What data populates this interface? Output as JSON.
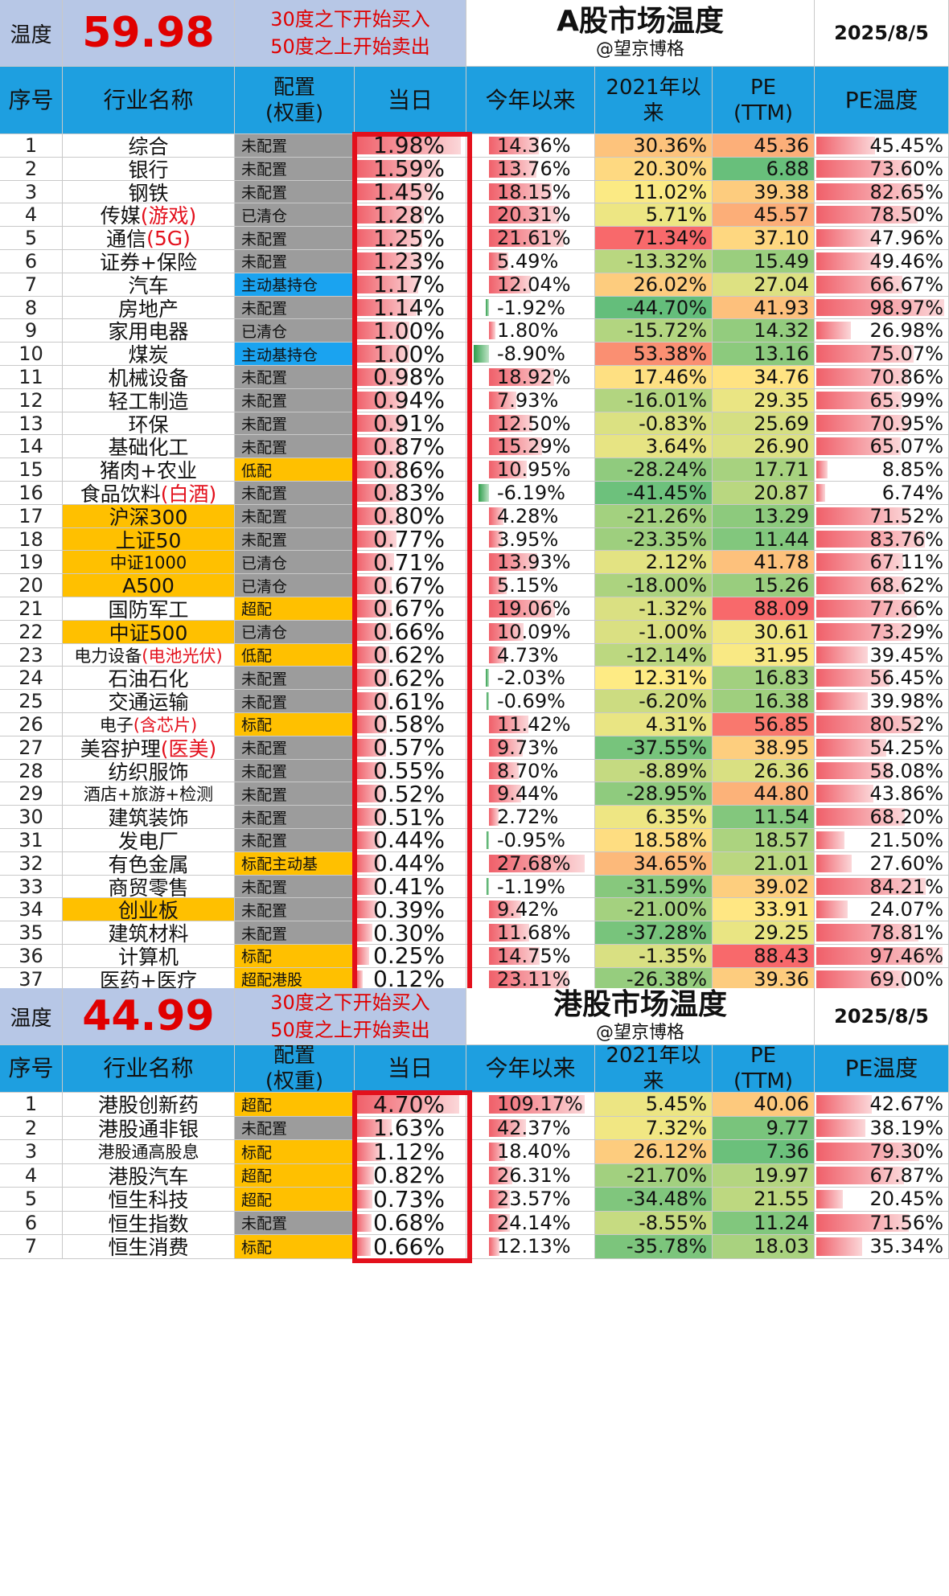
{
  "a_share": {
    "temp_label": "温度",
    "temp_value": "59.98",
    "rule_line1": "30度之下开始买入",
    "rule_line2": "50度之上开始卖出",
    "title": "A股市场温度",
    "author": "@望京博格",
    "date": "2025/8/5",
    "headers": {
      "idx": "序号",
      "name": "行业名称",
      "alloc": "配置\n(权重)",
      "day": "当日",
      "ytd": "今年以来",
      "since2021": "2021年以\n来",
      "pe": "PE\n(TTM)",
      "pet": "PE温度"
    },
    "rows": [
      {
        "idx": "1",
        "name": "综合",
        "alloc": "未配置",
        "day": "1.98%",
        "ytd": "14.36%",
        "s21": "30.36%",
        "pe": "45.36",
        "pet": "45.45%"
      },
      {
        "idx": "2",
        "name": "银行",
        "alloc": "未配置",
        "day": "1.59%",
        "ytd": "13.76%",
        "s21": "20.30%",
        "pe": "6.88",
        "pet": "73.60%"
      },
      {
        "idx": "3",
        "name": "钢铁",
        "alloc": "未配置",
        "day": "1.45%",
        "ytd": "18.15%",
        "s21": "11.02%",
        "pe": "39.38",
        "pet": "82.65%"
      },
      {
        "idx": "4",
        "name": "传媒",
        "name_red": "(游戏)",
        "alloc": "已清仓",
        "day": "1.28%",
        "ytd": "20.31%",
        "s21": "5.71%",
        "pe": "45.57",
        "pet": "78.50%"
      },
      {
        "idx": "5",
        "name": "通信",
        "name_red": "(5G)",
        "alloc": "未配置",
        "day": "1.25%",
        "ytd": "21.61%",
        "s21": "71.34%",
        "pe": "37.10",
        "pet": "47.96%"
      },
      {
        "idx": "6",
        "name": "证券+保险",
        "alloc": "未配置",
        "day": "1.23%",
        "ytd": "5.49%",
        "s21": "-13.32%",
        "pe": "15.49",
        "pet": "49.46%"
      },
      {
        "idx": "7",
        "name": "汽车",
        "alloc": "主动基持仓",
        "day": "1.17%",
        "ytd": "12.04%",
        "s21": "26.02%",
        "pe": "27.04",
        "pet": "66.67%"
      },
      {
        "idx": "8",
        "name": "房地产",
        "alloc": "未配置",
        "day": "1.14%",
        "ytd": "-1.92%",
        "s21": "-44.70%",
        "pe": "41.93",
        "pet": "98.97%"
      },
      {
        "idx": "9",
        "name": "家用电器",
        "alloc": "已清仓",
        "day": "1.00%",
        "ytd": "1.80%",
        "s21": "-15.72%",
        "pe": "14.32",
        "pet": "26.98%"
      },
      {
        "idx": "10",
        "name": "煤炭",
        "alloc": "主动基持仓",
        "day": "1.00%",
        "ytd": "-8.90%",
        "s21": "53.38%",
        "pe": "13.16",
        "pet": "75.07%"
      },
      {
        "idx": "11",
        "name": "机械设备",
        "alloc": "未配置",
        "day": "0.98%",
        "ytd": "18.92%",
        "s21": "17.46%",
        "pe": "34.76",
        "pet": "70.86%"
      },
      {
        "idx": "12",
        "name": "轻工制造",
        "alloc": "未配置",
        "day": "0.94%",
        "ytd": "7.93%",
        "s21": "-16.01%",
        "pe": "29.35",
        "pet": "65.99%"
      },
      {
        "idx": "13",
        "name": "环保",
        "alloc": "未配置",
        "day": "0.91%",
        "ytd": "12.50%",
        "s21": "-0.83%",
        "pe": "25.69",
        "pet": "70.95%"
      },
      {
        "idx": "14",
        "name": "基础化工",
        "alloc": "未配置",
        "day": "0.87%",
        "ytd": "15.29%",
        "s21": "3.64%",
        "pe": "26.90",
        "pet": "65.07%"
      },
      {
        "idx": "15",
        "name": "猪肉+农业",
        "alloc": "低配",
        "day": "0.86%",
        "ytd": "10.95%",
        "s21": "-28.24%",
        "pe": "17.71",
        "pet": "8.85%"
      },
      {
        "idx": "16",
        "name": "食品饮料",
        "name_red": "(白酒)",
        "alloc": "未配置",
        "day": "0.83%",
        "ytd": "-6.19%",
        "s21": "-41.45%",
        "pe": "20.87",
        "pet": "6.74%"
      },
      {
        "idx": "17",
        "name": "沪深300",
        "alloc": "未配置",
        "day": "0.80%",
        "ytd": "4.28%",
        "s21": "-21.26%",
        "pe": "13.29",
        "pet": "71.52%"
      },
      {
        "idx": "18",
        "name": "上证50",
        "alloc": "未配置",
        "day": "0.77%",
        "ytd": "3.95%",
        "s21": "-23.35%",
        "pe": "11.44",
        "pet": "83.76%"
      },
      {
        "idx": "19",
        "name": "中证1000",
        "alloc": "已清仓",
        "day": "0.71%",
        "ytd": "13.93%",
        "s21": "2.12%",
        "pe": "41.78",
        "pet": "67.11%"
      },
      {
        "idx": "20",
        "name": "A500",
        "alloc": "已清仓",
        "day": "0.67%",
        "ytd": "5.15%",
        "s21": "-18.00%",
        "pe": "15.26",
        "pet": "68.62%"
      },
      {
        "idx": "21",
        "name": "国防军工",
        "alloc": "超配",
        "day": "0.67%",
        "ytd": "19.06%",
        "s21": "-1.32%",
        "pe": "88.09",
        "pet": "77.66%"
      },
      {
        "idx": "22",
        "name": "中证500",
        "alloc": "已清仓",
        "day": "0.66%",
        "ytd": "10.09%",
        "s21": "-1.00%",
        "pe": "30.61",
        "pet": "73.29%"
      },
      {
        "idx": "23",
        "name": "电力设备",
        "name_red": "(电池光伏)",
        "alloc": "低配",
        "day": "0.62%",
        "ytd": "4.73%",
        "s21": "-12.14%",
        "pe": "31.95",
        "pet": "39.45%"
      },
      {
        "idx": "24",
        "name": "石油石化",
        "alloc": "未配置",
        "day": "0.62%",
        "ytd": "-2.03%",
        "s21": "12.31%",
        "pe": "16.83",
        "pet": "56.45%"
      },
      {
        "idx": "25",
        "name": "交通运输",
        "alloc": "未配置",
        "day": "0.61%",
        "ytd": "-0.69%",
        "s21": "-6.20%",
        "pe": "16.38",
        "pet": "39.98%"
      },
      {
        "idx": "26",
        "name": "电子",
        "name_red": "(含芯片)",
        "alloc": "标配",
        "day": "0.58%",
        "ytd": "11.42%",
        "s21": "4.31%",
        "pe": "56.85",
        "pet": "80.52%"
      },
      {
        "idx": "27",
        "name": "美容护理",
        "name_red": "(医美)",
        "alloc": "未配置",
        "day": "0.57%",
        "ytd": "9.73%",
        "s21": "-37.55%",
        "pe": "38.95",
        "pet": "54.25%"
      },
      {
        "idx": "28",
        "name": "纺织服饰",
        "alloc": "未配置",
        "day": "0.55%",
        "ytd": "8.70%",
        "s21": "-8.89%",
        "pe": "26.36",
        "pet": "58.08%"
      },
      {
        "idx": "29",
        "name": "酒店+旅游+检测",
        "alloc": "未配置",
        "day": "0.52%",
        "ytd": "9.44%",
        "s21": "-28.95%",
        "pe": "44.80",
        "pet": "43.86%"
      },
      {
        "idx": "30",
        "name": "建筑装饰",
        "alloc": "未配置",
        "day": "0.51%",
        "ytd": "2.72%",
        "s21": "6.35%",
        "pe": "11.54",
        "pet": "68.20%"
      },
      {
        "idx": "31",
        "name": "发电厂",
        "alloc": "未配置",
        "day": "0.44%",
        "ytd": "-0.95%",
        "s21": "18.58%",
        "pe": "18.57",
        "pet": "21.50%"
      },
      {
        "idx": "32",
        "name": "有色金属",
        "alloc": "标配主动基",
        "day": "0.44%",
        "ytd": "27.68%",
        "s21": "34.65%",
        "pe": "21.01",
        "pet": "27.60%"
      },
      {
        "idx": "33",
        "name": "商贸零售",
        "alloc": "未配置",
        "day": "0.41%",
        "ytd": "-1.19%",
        "s21": "-31.59%",
        "pe": "39.02",
        "pet": "84.21%"
      },
      {
        "idx": "34",
        "name": "创业板",
        "alloc": "未配置",
        "day": "0.39%",
        "ytd": "9.42%",
        "s21": "-21.00%",
        "pe": "33.91",
        "pet": "24.07%"
      },
      {
        "idx": "35",
        "name": "建筑材料",
        "alloc": "未配置",
        "day": "0.30%",
        "ytd": "11.68%",
        "s21": "-37.28%",
        "pe": "29.25",
        "pet": "78.81%"
      },
      {
        "idx": "36",
        "name": "计算机",
        "alloc": "标配",
        "day": "0.25%",
        "ytd": "14.75%",
        "s21": "-1.35%",
        "pe": "88.43",
        "pet": "97.46%"
      },
      {
        "idx": "37",
        "name": "医药+医疗",
        "alloc": "超配港股",
        "day": "0.12%",
        "ytd": "23.11%",
        "s21": "-26.38%",
        "pe": "39.36",
        "pet": "69.00%"
      }
    ]
  },
  "hk_share": {
    "temp_label": "温度",
    "temp_value": "44.99",
    "rule_line1": "30度之下开始买入",
    "rule_line2": "50度之上开始卖出",
    "title": "港股市场温度",
    "author": "@望京博格",
    "date": "2025/8/5",
    "headers": {
      "idx": "序号",
      "name": "行业名称",
      "alloc": "配置\n(权重)",
      "day": "当日",
      "ytd": "今年以来",
      "since2021": "2021年以\n来",
      "pe": "PE\n(TTM)",
      "pet": "PE温度"
    },
    "rows": [
      {
        "idx": "1",
        "name": "港股创新药",
        "alloc": "超配",
        "day": "4.70%",
        "ytd": "109.17%",
        "s21": "5.45%",
        "pe": "40.06",
        "pet": "42.67%"
      },
      {
        "idx": "2",
        "name": "港股通非银",
        "alloc": "未配置",
        "day": "1.63%",
        "ytd": "42.37%",
        "s21": "7.32%",
        "pe": "9.77",
        "pet": "38.19%"
      },
      {
        "idx": "3",
        "name": "港股通高股息",
        "alloc": "标配",
        "day": "1.12%",
        "ytd": "18.40%",
        "s21": "26.12%",
        "pe": "7.36",
        "pet": "79.30%"
      },
      {
        "idx": "4",
        "name": "港股汽车",
        "alloc": "超配",
        "day": "0.82%",
        "ytd": "26.31%",
        "s21": "-21.70%",
        "pe": "19.97",
        "pet": "67.87%"
      },
      {
        "idx": "5",
        "name": "恒生科技",
        "alloc": "超配",
        "day": "0.73%",
        "ytd": "23.57%",
        "s21": "-34.48%",
        "pe": "21.55",
        "pet": "20.45%"
      },
      {
        "idx": "6",
        "name": "恒生指数",
        "alloc": "未配置",
        "day": "0.68%",
        "ytd": "24.14%",
        "s21": "-8.55%",
        "pe": "11.24",
        "pet": "71.56%"
      },
      {
        "idx": "7",
        "name": "恒生消费",
        "alloc": "标配",
        "day": "0.66%",
        "ytd": "12.13%",
        "s21": "-35.78%",
        "pe": "18.03",
        "pet": "35.34%"
      }
    ]
  },
  "colors": {
    "header_blue": "#1e9fe0",
    "header_lav": "#b7c7e6",
    "alloc_gray": "#9c9c9c",
    "alloc_orange": "#ffc000",
    "alloc_blue": "#1aa3f0",
    "bar_red": "#f0606a",
    "bar_green": "#2e9e4a",
    "box_red": "#e3101c"
  }
}
